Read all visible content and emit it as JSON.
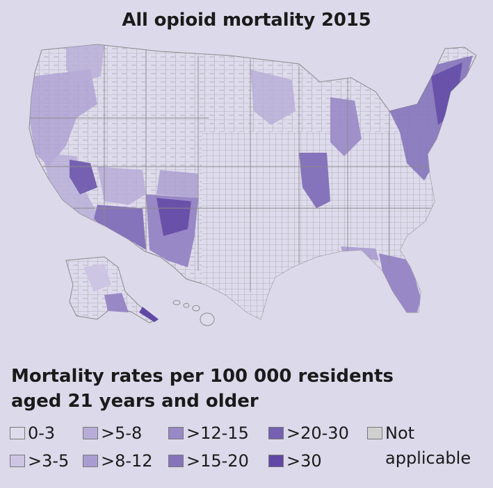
{
  "title": "All opioid mortality 2015",
  "legend": {
    "title_line1": "Mortality rates per 100 000 residents",
    "title_line2": "aged 21 years and older",
    "items": [
      {
        "label": "0-3",
        "color": "#dedbec"
      },
      {
        "label": ">3-5",
        "color": "#ccc5e3"
      },
      {
        "label": ">5-8",
        "color": "#b7acd8"
      },
      {
        "label": ">8-12",
        "color": "#a99cd0"
      },
      {
        "label": ">12-15",
        "color": "#9988c6"
      },
      {
        "label": ">15-20",
        "color": "#8574bb"
      },
      {
        "label": ">20-30",
        "color": "#7560b2"
      },
      {
        "label": ">30",
        "color": "#6048a4"
      }
    ],
    "not_applicable": {
      "label_line1": "Not",
      "label_line2": "applicable",
      "color": "#d0d0d0"
    }
  },
  "map": {
    "base_county_color": "#dedbec",
    "outline_color": "#8a8a8a"
  }
}
